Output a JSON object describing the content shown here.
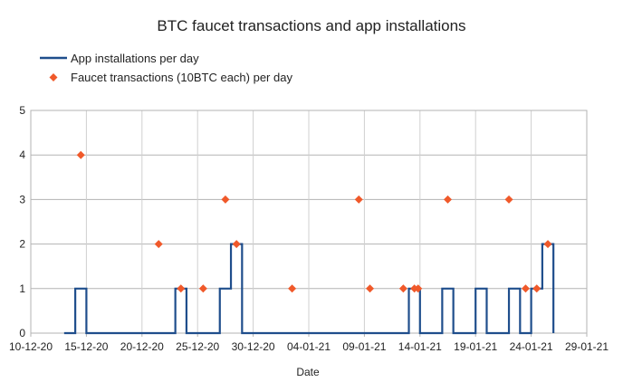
{
  "chart_data": {
    "type": "line",
    "title": "BTC faucet transactions and app installations",
    "xlabel": "Date",
    "ylabel": "",
    "ylim": [
      0,
      5
    ],
    "yticks": [
      "0",
      "1",
      "2",
      "3",
      "4",
      "5"
    ],
    "xlim": [
      "2020-12-10",
      "2021-01-29"
    ],
    "xticks": [
      {
        "date": "2020-12-10",
        "label": "10-12-20"
      },
      {
        "date": "2020-12-15",
        "label": "15-12-20"
      },
      {
        "date": "2020-12-20",
        "label": "20-12-20"
      },
      {
        "date": "2020-12-25",
        "label": "25-12-20"
      },
      {
        "date": "2020-12-30",
        "label": "30-12-20"
      },
      {
        "date": "2021-01-04",
        "label": "04-01-21"
      },
      {
        "date": "2021-01-09",
        "label": "09-01-21"
      },
      {
        "date": "2021-01-14",
        "label": "14-01-21"
      },
      {
        "date": "2021-01-19",
        "label": "19-01-21"
      },
      {
        "date": "2021-01-24",
        "label": "24-01-21"
      },
      {
        "date": "2021-01-29",
        "label": "29-01-21"
      }
    ],
    "grid": true,
    "legend_position": "top-left",
    "series": [
      {
        "name": "App installations per day",
        "kind": "step",
        "color": "#1f4e8c",
        "points": [
          {
            "x": "2020-12-13",
            "y": 0
          },
          {
            "x": "2020-12-14",
            "y": 1
          },
          {
            "x": "2020-12-15",
            "y": 0
          },
          {
            "x": "2020-12-23",
            "y": 1
          },
          {
            "x": "2020-12-24",
            "y": 0
          },
          {
            "x": "2020-12-27",
            "y": 1
          },
          {
            "x": "2020-12-28",
            "y": 2
          },
          {
            "x": "2020-12-29",
            "y": 0
          },
          {
            "x": "2021-01-13",
            "y": 1
          },
          {
            "x": "2021-01-14",
            "y": 0
          },
          {
            "x": "2021-01-16",
            "y": 1
          },
          {
            "x": "2021-01-17",
            "y": 0
          },
          {
            "x": "2021-01-19",
            "y": 1
          },
          {
            "x": "2021-01-20",
            "y": 0
          },
          {
            "x": "2021-01-22",
            "y": 1
          },
          {
            "x": "2021-01-23",
            "y": 0
          },
          {
            "x": "2021-01-24",
            "y": 1
          },
          {
            "x": "2021-01-25",
            "y": 2
          },
          {
            "x": "2021-01-26",
            "y": 0
          }
        ],
        "end_x": "2021-01-26"
      },
      {
        "name": "Faucet transactions (10BTC each) per day",
        "kind": "scatter",
        "color": "#f0592a",
        "points": [
          {
            "x": "2020-12-14T12:00",
            "y": 4
          },
          {
            "x": "2020-12-21T12:00",
            "y": 2
          },
          {
            "x": "2020-12-23T12:00",
            "y": 1
          },
          {
            "x": "2020-12-25T12:00",
            "y": 1
          },
          {
            "x": "2020-12-27T12:00",
            "y": 3
          },
          {
            "x": "2020-12-28T12:00",
            "y": 2
          },
          {
            "x": "2021-01-02T12:00",
            "y": 1
          },
          {
            "x": "2021-01-08T12:00",
            "y": 3
          },
          {
            "x": "2021-01-09T12:00",
            "y": 1
          },
          {
            "x": "2021-01-12T12:00",
            "y": 1
          },
          {
            "x": "2021-01-13T12:00",
            "y": 1
          },
          {
            "x": "2021-01-13T20:00",
            "y": 1
          },
          {
            "x": "2021-01-16T12:00",
            "y": 3
          },
          {
            "x": "2021-01-22T00:00",
            "y": 3
          },
          {
            "x": "2021-01-23T12:00",
            "y": 1
          },
          {
            "x": "2021-01-24T12:00",
            "y": 1
          },
          {
            "x": "2021-01-25T12:00",
            "y": 2
          }
        ]
      }
    ]
  }
}
